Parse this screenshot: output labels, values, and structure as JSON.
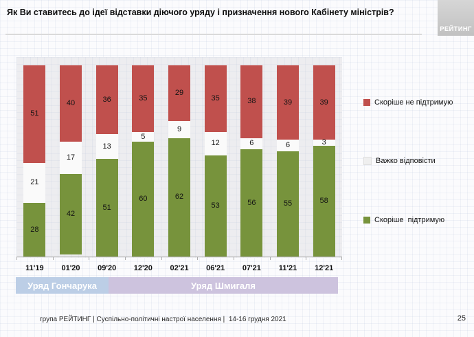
{
  "header": {
    "title": "Як Ви ставитесь до ідеї відставки діючого уряду і призначення нового Кабінету міністрів?",
    "logo_text": "РЕЙТИНГ"
  },
  "chart_data": {
    "type": "bar",
    "variant": "stacked-100-percent",
    "title": "Як Ви ставитесь до ідеї відставки діючого уряду і призначення нового Кабінету міністрів?",
    "categories": [
      "11'19",
      "01'20",
      "09'20",
      "12'20",
      "02'21",
      "06'21",
      "07'21",
      "11'21",
      "12'21"
    ],
    "series": [
      {
        "name": "Скоріше не підтримую",
        "stack_position": "top",
        "color": "#C0504D",
        "values": [
          51,
          40,
          36,
          35,
          29,
          35,
          38,
          39,
          39
        ]
      },
      {
        "name": "Важко відповісти",
        "stack_position": "middle",
        "color": "#FAFAFA",
        "values": [
          21,
          17,
          13,
          5,
          9,
          12,
          6,
          6,
          3
        ]
      },
      {
        "name": "Скоріше підтримую",
        "stack_position": "bottom",
        "color": "#77933C",
        "values": [
          28,
          42,
          51,
          60,
          62,
          53,
          56,
          55,
          58
        ]
      }
    ],
    "ylim": [
      0,
      100
    ],
    "grid": false,
    "value_labels": "inside-segments",
    "legend_position": "right",
    "era_bands": [
      {
        "label": "Уряд Гончарука",
        "color": "#BCCEE6",
        "span_percent": 28.8
      },
      {
        "label": "Уряд Шмигаля",
        "color": "#CDC3DE",
        "span_percent": 71.2
      }
    ]
  },
  "legend": {
    "items": [
      {
        "label": "Скоріше не підтримую",
        "swatch_color": "#C0504D"
      },
      {
        "label": "Важко відповісти",
        "swatch_color": "#EFEFEF",
        "swatch_border": "#DEDEDE"
      },
      {
        "label": "Скоріше  підтримую",
        "swatch_color": "#77933C"
      }
    ]
  },
  "footer": {
    "source_text": "група РЕЙТИНГ | Суспільно-політичні настрої населення |  14-16 грудня 2021",
    "page_number": "25"
  }
}
